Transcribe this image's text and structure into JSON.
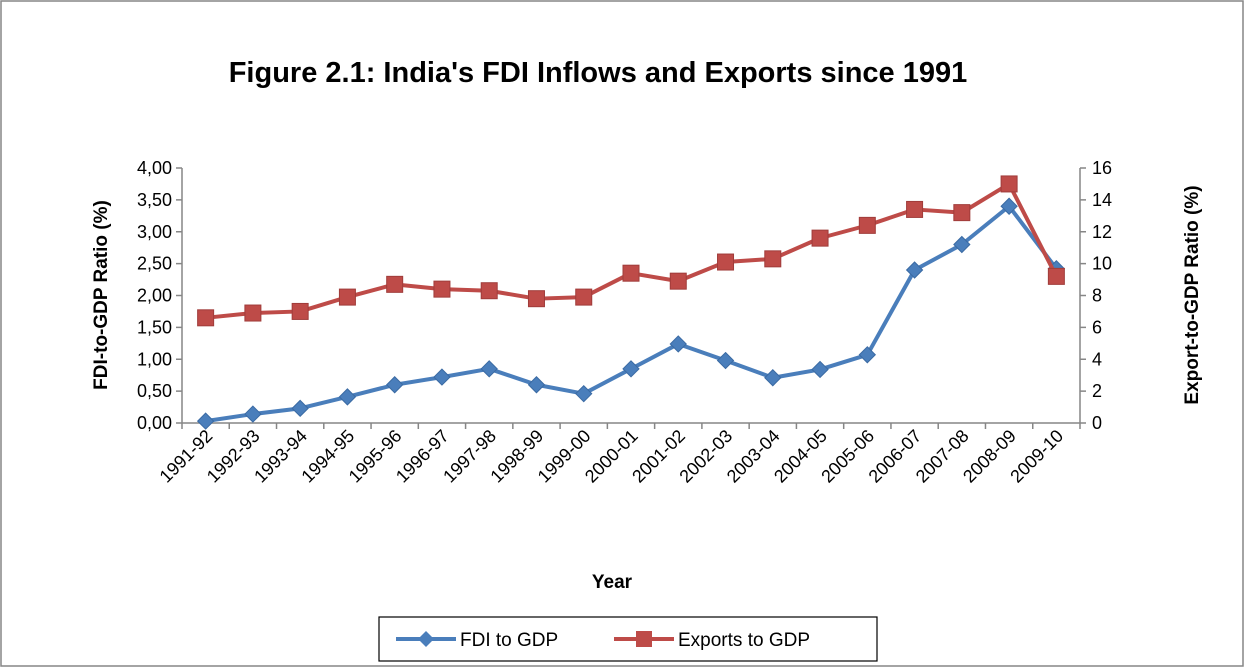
{
  "chart_data": {
    "type": "line",
    "title": "Figure 2.1: India's FDI Inflows and Exports  since 1991",
    "xlabel": "Year",
    "ylabel": "FDI-to-GDP Ratio (%)",
    "y2label": "Export-to-GDP Ratio (%)",
    "categories": [
      "1991-92",
      "1992-93",
      "1993-94",
      "1994-95",
      "1995-96",
      "1996-97",
      "1997-98",
      "1998-99",
      "1999-00",
      "2000-01",
      "2001-02",
      "2002-03",
      "2003-04",
      "2004-05",
      "2005-06",
      "2006-07",
      "2007-08",
      "2008-09",
      "2009-10"
    ],
    "ylim": [
      0,
      4
    ],
    "y2lim": [
      0,
      16
    ],
    "yticks": [
      "0,00",
      "0,50",
      "1,00",
      "1,50",
      "2,00",
      "2,50",
      "3,00",
      "3,50",
      "4,00"
    ],
    "y2ticks": [
      "0",
      "2",
      "4",
      "6",
      "8",
      "10",
      "12",
      "14",
      "16"
    ],
    "grid": false,
    "legend_position": "bottom",
    "series": [
      {
        "name": "FDI to GDP",
        "axis": "left",
        "color": "#4a7ebb",
        "marker": "diamond",
        "values": [
          0.03,
          0.14,
          0.23,
          0.41,
          0.6,
          0.72,
          0.85,
          0.6,
          0.46,
          0.85,
          1.24,
          0.98,
          0.71,
          0.84,
          1.07,
          2.4,
          2.8,
          3.4,
          2.42
        ]
      },
      {
        "name": "Exports to GDP",
        "axis": "right",
        "color": "#be4b48",
        "marker": "square",
        "values": [
          6.6,
          6.9,
          7.0,
          7.9,
          8.7,
          8.4,
          8.3,
          7.8,
          7.9,
          9.4,
          8.9,
          10.1,
          10.3,
          11.6,
          12.4,
          13.4,
          13.2,
          15.0,
          9.2
        ]
      }
    ]
  }
}
